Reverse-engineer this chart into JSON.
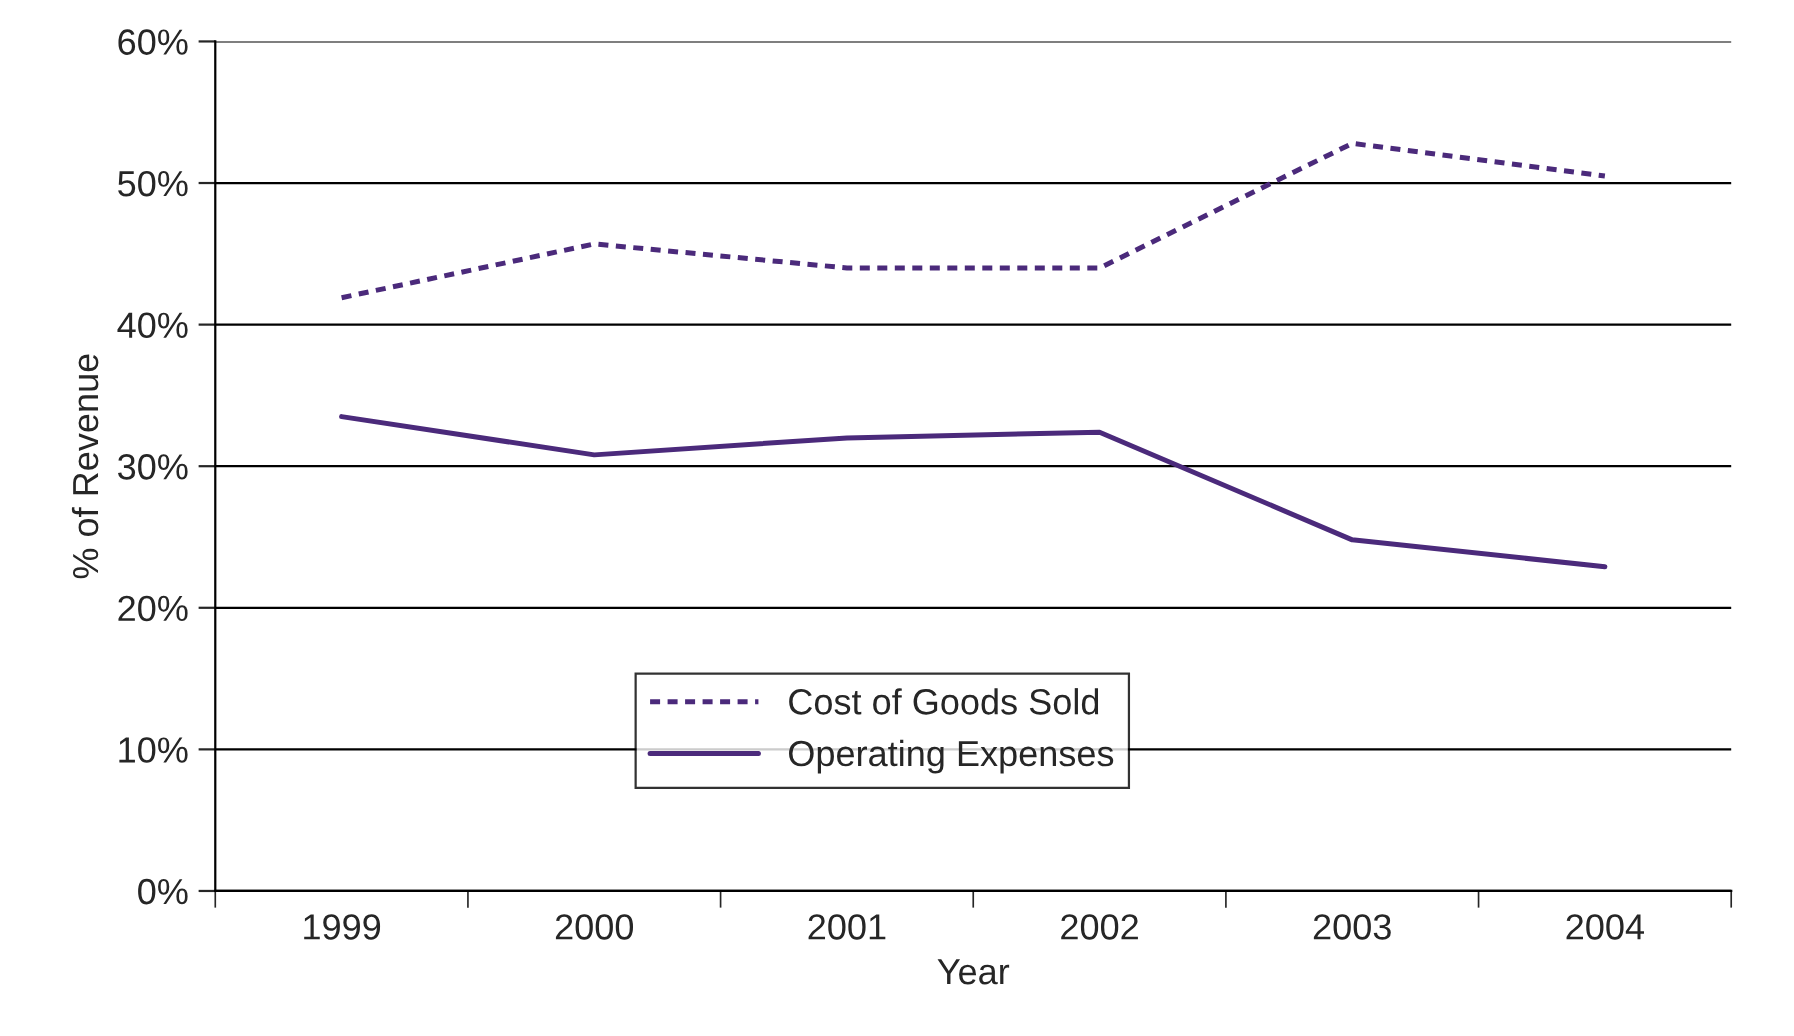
{
  "chart_data": {
    "type": "line",
    "xlabel": "Year",
    "ylabel": "% of Revenue",
    "categories": [
      "1999",
      "2000",
      "2001",
      "2002",
      "2003",
      "2004"
    ],
    "series": [
      {
        "name": "Cost of Goods Sold",
        "color": "#4b2a7b",
        "line_style": "dashed",
        "values": [
          41.9,
          45.7,
          44.0,
          44.0,
          52.8,
          50.5
        ]
      },
      {
        "name": "Operating Expenses",
        "color": "#4b2a7b",
        "line_style": "solid",
        "values": [
          33.5,
          30.8,
          32.0,
          32.4,
          24.8,
          22.9
        ]
      }
    ],
    "ylim": [
      0,
      60
    ],
    "yticks": [
      {
        "value": 0,
        "label": "0%"
      },
      {
        "value": 10,
        "label": "10%"
      },
      {
        "value": 20,
        "label": "20%"
      },
      {
        "value": 30,
        "label": "30%"
      },
      {
        "value": 40,
        "label": "40%"
      },
      {
        "value": 50,
        "label": "50%"
      },
      {
        "value": 60,
        "label": "60%"
      }
    ],
    "grid": "y",
    "legend": "bottom",
    "marker": "none"
  }
}
